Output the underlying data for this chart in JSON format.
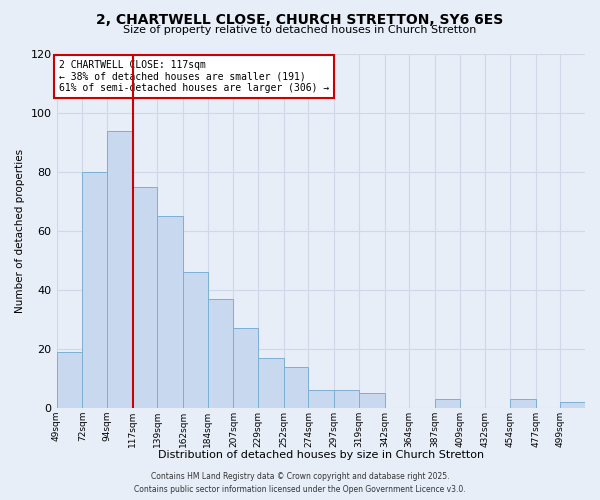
{
  "title": "2, CHARTWELL CLOSE, CHURCH STRETTON, SY6 6ES",
  "subtitle": "Size of property relative to detached houses in Church Stretton",
  "xlabel": "Distribution of detached houses by size in Church Stretton",
  "ylabel": "Number of detached properties",
  "bar_color": "#c8d9ef",
  "bar_edge_color": "#7bafd4",
  "background_color": "#e8eef8",
  "grid_color": "#d0d8e8",
  "bin_labels": [
    "49sqm",
    "72sqm",
    "94sqm",
    "117sqm",
    "139sqm",
    "162sqm",
    "184sqm",
    "207sqm",
    "229sqm",
    "252sqm",
    "274sqm",
    "297sqm",
    "319sqm",
    "342sqm",
    "364sqm",
    "387sqm",
    "409sqm",
    "432sqm",
    "454sqm",
    "477sqm",
    "499sqm"
  ],
  "bar_heights": [
    19,
    80,
    94,
    75,
    65,
    46,
    37,
    27,
    17,
    14,
    6,
    6,
    5,
    0,
    0,
    3,
    0,
    0,
    3,
    0,
    2
  ],
  "bin_edges": [
    49,
    72,
    94,
    117,
    139,
    162,
    184,
    207,
    229,
    252,
    274,
    297,
    319,
    342,
    364,
    387,
    409,
    432,
    454,
    477,
    499,
    521
  ],
  "vline_x": 117,
  "vline_color": "#cc0000",
  "ylim": [
    0,
    120
  ],
  "yticks": [
    0,
    20,
    40,
    60,
    80,
    100,
    120
  ],
  "annotation_text": "2 CHARTWELL CLOSE: 117sqm\n← 38% of detached houses are smaller (191)\n61% of semi-detached houses are larger (306) →",
  "annotation_box_color": "#ffffff",
  "annotation_box_edge": "#cc0000",
  "footer_line1": "Contains HM Land Registry data © Crown copyright and database right 2025.",
  "footer_line2": "Contains public sector information licensed under the Open Government Licence v3.0."
}
